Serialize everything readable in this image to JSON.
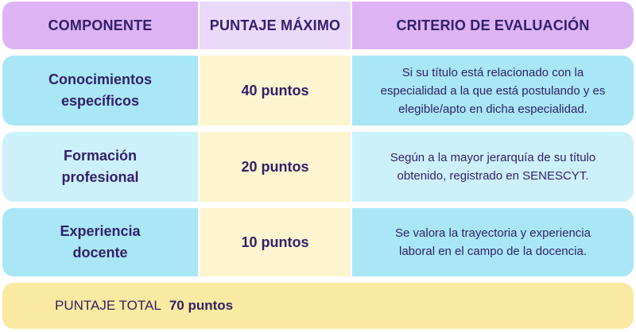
{
  "header": {
    "col1": "COMPONENTE",
    "col2": "PUNTAJE MÁXIMO",
    "col3": "CRITERIO DE EVALUACIÓN"
  },
  "rows": [
    {
      "componente": "Conocimientos específicos",
      "puntaje": "40 puntos",
      "criterio": "Si su título está relacionado con la especialidad a la que está postulando y es elegible/apto en dicha especialidad."
    },
    {
      "componente": "Formación profesional",
      "puntaje": "20 puntos",
      "criterio": "Según a la mayor jerarquía de su título obtenido, registrado en SENESCYT."
    },
    {
      "componente": "Experiencia docente",
      "puntaje": "10 puntos",
      "criterio": "Se valora la trayectoria y experiencia laboral en el campo de la docencia."
    }
  ],
  "total": {
    "label": "PUNTAJE TOTAL",
    "value": "70 puntos"
  },
  "colors": {
    "header_purple": "#dcb4f4",
    "header_lavender": "#ead9fb",
    "cyan_dark": "#a9e7f6",
    "cyan_light": "#cdf1fb",
    "cream": "#fcf5cf",
    "total_yellow": "#fbeaa1",
    "text_navy": "#33206a"
  }
}
